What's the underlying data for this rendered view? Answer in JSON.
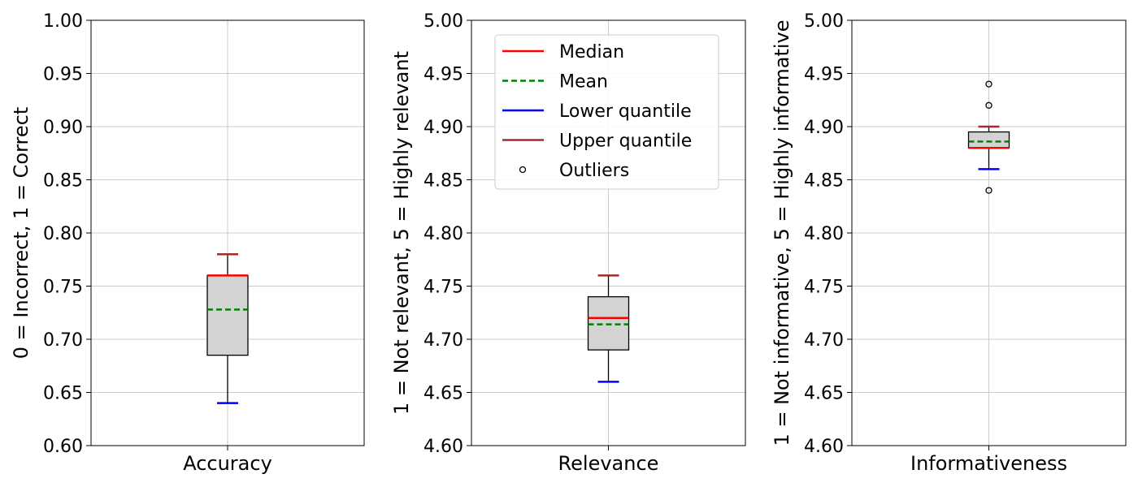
{
  "chart_data": [
    {
      "type": "box",
      "category": "Accuracy",
      "ylabel": "0 = Incorrect, 1 = Correct",
      "ylim": [
        0.6,
        1.0
      ],
      "ticks": [
        "0.60",
        "0.65",
        "0.70",
        "0.75",
        "0.80",
        "0.85",
        "0.90",
        "0.95",
        "1.00"
      ],
      "tick_values": [
        0.6,
        0.65,
        0.7,
        0.75,
        0.8,
        0.85,
        0.9,
        0.95,
        1.0
      ],
      "stats": {
        "whisker_low": 0.64,
        "q1": 0.685,
        "median": 0.76,
        "mean": 0.728,
        "q3": 0.76,
        "whisker_high": 0.78
      },
      "outliers": [],
      "grid": true
    },
    {
      "type": "box",
      "category": "Relevance",
      "ylabel": "1 = Not relevant, 5 = Highly relevant",
      "ylim": [
        4.6,
        5.0
      ],
      "ticks": [
        "4.60",
        "4.65",
        "4.70",
        "4.75",
        "4.80",
        "4.85",
        "4.90",
        "4.95",
        "5.00"
      ],
      "tick_values": [
        4.6,
        4.65,
        4.7,
        4.75,
        4.8,
        4.85,
        4.9,
        4.95,
        5.0
      ],
      "stats": {
        "whisker_low": 4.66,
        "q1": 4.69,
        "median": 4.72,
        "mean": 4.714,
        "q3": 4.74,
        "whisker_high": 4.76
      },
      "outliers": [],
      "grid": true,
      "legend": {
        "position": "upper-left",
        "entries": [
          {
            "label": "Median",
            "kind": "line",
            "color": "#ff0000",
            "dash": "solid"
          },
          {
            "label": "Mean",
            "kind": "line",
            "color": "#008000",
            "dash": "dashed"
          },
          {
            "label": "Lower quantile",
            "kind": "line",
            "color": "#0000ff",
            "dash": "solid"
          },
          {
            "label": "Upper quantile",
            "kind": "line",
            "color": "#a52a2a",
            "dash": "solid"
          },
          {
            "label": "Outliers",
            "kind": "marker",
            "color": "#000000",
            "dash": "none"
          }
        ]
      }
    },
    {
      "type": "box",
      "category": "Informativeness",
      "ylabel": "1 = Not informative, 5 = Highly informative",
      "ylim": [
        4.6,
        5.0
      ],
      "ticks": [
        "4.60",
        "4.65",
        "4.70",
        "4.75",
        "4.80",
        "4.85",
        "4.90",
        "4.95",
        "5.00"
      ],
      "tick_values": [
        4.6,
        4.65,
        4.7,
        4.75,
        4.8,
        4.85,
        4.9,
        4.95,
        5.0
      ],
      "stats": {
        "whisker_low": 4.86,
        "q1": 4.88,
        "median": 4.88,
        "mean": 4.886,
        "q3": 4.895,
        "whisker_high": 4.9
      },
      "outliers": [
        4.84,
        4.92,
        4.94
      ],
      "grid": true
    }
  ],
  "colors": {
    "median": "#ff0000",
    "mean": "#008000",
    "lower_whisker": "#0000ff",
    "upper_whisker": "#a52a2a",
    "box_fill": "#d3d3d3",
    "grid": "#cccccc"
  }
}
